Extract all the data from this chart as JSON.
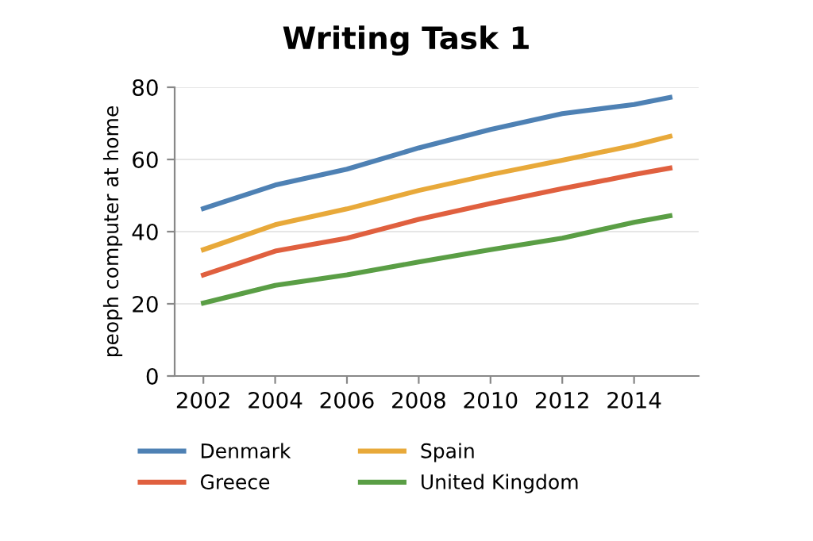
{
  "chart_data": {
    "type": "line",
    "title": "Writing Task 1",
    "ylabel": "peoph computer at home",
    "x": [
      2002,
      2004,
      2006,
      2008,
      2010,
      2012,
      2014,
      2015
    ],
    "series": [
      {
        "name": "Denmark",
        "color": "#4e81b4",
        "values": [
          46.4,
          52.9,
          57.3,
          63.2,
          68.3,
          72.7,
          75.2,
          77.2
        ]
      },
      {
        "name": "Greece",
        "color": "#e0603f",
        "values": [
          28.0,
          34.6,
          38.2,
          43.4,
          47.8,
          51.9,
          55.8,
          57.6
        ]
      },
      {
        "name": "Spain",
        "color": "#e8a93a",
        "values": [
          35.0,
          41.9,
          46.3,
          51.4,
          55.8,
          59.8,
          63.9,
          66.4
        ]
      },
      {
        "name": "United Kingdom",
        "color": "#5a9e45",
        "values": [
          20.2,
          25.1,
          28.0,
          31.6,
          35.0,
          38.2,
          42.6,
          44.4
        ]
      }
    ],
    "xlim": [
      2001.2,
      2015.8
    ],
    "xticks": [
      2002,
      2004,
      2006,
      2008,
      2010,
      2012,
      2014
    ],
    "ylim": [
      0,
      80
    ],
    "yticks": [
      0,
      20,
      40,
      60,
      80
    ],
    "grid": "y",
    "legend": "bottom",
    "marker": "none",
    "line_style": "solid"
  }
}
